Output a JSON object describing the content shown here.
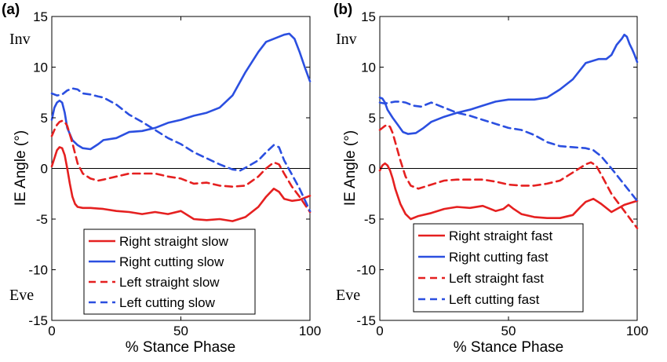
{
  "chart_data": [
    {
      "type": "line",
      "panel_label": "(a)",
      "xlabel": "% Stance Phase",
      "ylabel": "IE Angle (°)",
      "xlim": [
        0,
        100
      ],
      "ylim": [
        -15,
        15
      ],
      "xticks": [
        0,
        50,
        100
      ],
      "yticks": [
        -15,
        -10,
        -5,
        0,
        5,
        10,
        15
      ],
      "annotations": [
        "Inv",
        "Eve"
      ],
      "legend_position": "bottom-center",
      "series": [
        {
          "name": "Right straight slow",
          "color": "#e52020",
          "dash": "solid",
          "x": [
            0,
            1,
            2,
            3,
            4,
            5,
            6,
            7,
            8,
            9,
            10,
            12,
            15,
            20,
            25,
            30,
            35,
            40,
            45,
            50,
            55,
            60,
            65,
            70,
            75,
            80,
            83,
            86,
            88,
            90,
            93,
            96,
            100
          ],
          "y": [
            0.2,
            1.0,
            1.8,
            2.1,
            2.0,
            1.3,
            0.0,
            -1.5,
            -2.8,
            -3.5,
            -3.8,
            -3.9,
            -3.9,
            -4.0,
            -4.2,
            -4.3,
            -4.5,
            -4.3,
            -4.5,
            -4.2,
            -5.0,
            -5.1,
            -5.0,
            -5.2,
            -4.8,
            -3.8,
            -2.8,
            -2.0,
            -2.3,
            -3.0,
            -3.2,
            -3.1,
            -2.7
          ]
        },
        {
          "name": "Right cutting slow",
          "color": "#2b4fe0",
          "dash": "solid",
          "x": [
            0,
            1,
            2,
            3,
            4,
            5,
            6,
            8,
            10,
            12,
            15,
            18,
            20,
            25,
            30,
            35,
            40,
            45,
            50,
            55,
            60,
            65,
            70,
            75,
            80,
            83,
            86,
            88,
            90,
            92,
            94,
            96,
            98,
            100
          ],
          "y": [
            4.8,
            6.0,
            6.5,
            6.7,
            6.5,
            5.5,
            4.0,
            2.8,
            2.3,
            2.0,
            1.9,
            2.4,
            2.8,
            3.0,
            3.6,
            3.7,
            4.0,
            4.5,
            4.8,
            5.2,
            5.5,
            6.0,
            7.2,
            9.5,
            11.5,
            12.5,
            12.8,
            13.0,
            13.2,
            13.3,
            12.8,
            11.5,
            10.0,
            8.6
          ]
        },
        {
          "name": "Left straight slow",
          "color": "#e52020",
          "dash": "dashed",
          "x": [
            0,
            1,
            2,
            3,
            4,
            5,
            6,
            8,
            10,
            12,
            15,
            18,
            20,
            25,
            30,
            35,
            40,
            45,
            50,
            55,
            60,
            65,
            70,
            75,
            80,
            83,
            86,
            88,
            90,
            93,
            96,
            100
          ],
          "y": [
            3.2,
            3.8,
            4.3,
            4.6,
            4.7,
            4.6,
            4.2,
            2.5,
            0.5,
            -0.5,
            -1.0,
            -1.2,
            -1.1,
            -0.8,
            -0.5,
            -0.5,
            -0.5,
            -0.8,
            -1.0,
            -1.5,
            -1.4,
            -1.7,
            -1.8,
            -1.7,
            -0.8,
            0.0,
            0.6,
            0.4,
            -0.5,
            -1.8,
            -2.8,
            -4.3
          ]
        },
        {
          "name": "Left cutting slow",
          "color": "#2b4fe0",
          "dash": "dashed",
          "x": [
            0,
            2,
            4,
            6,
            8,
            10,
            12,
            15,
            18,
            20,
            25,
            30,
            35,
            40,
            45,
            50,
            55,
            60,
            65,
            70,
            73,
            76,
            80,
            83,
            86,
            88,
            90,
            93,
            96,
            100
          ],
          "y": [
            7.4,
            7.2,
            7.3,
            7.7,
            7.9,
            7.8,
            7.4,
            7.3,
            7.1,
            7.0,
            6.3,
            5.3,
            4.6,
            3.8,
            3.0,
            2.4,
            1.6,
            1.0,
            0.4,
            -0.1,
            -0.2,
            0.2,
            0.8,
            1.6,
            2.3,
            2.1,
            0.8,
            -0.6,
            -2.0,
            -4.2
          ]
        }
      ]
    },
    {
      "type": "line",
      "panel_label": "(b)",
      "xlabel": "% Stance Phase",
      "ylabel": "IE Angle (°)",
      "xlim": [
        0,
        100
      ],
      "ylim": [
        -15,
        15
      ],
      "xticks": [
        0,
        50,
        100
      ],
      "yticks": [
        -15,
        -10,
        -5,
        0,
        5,
        10,
        15
      ],
      "annotations": [
        "Inv",
        "Eve"
      ],
      "legend_position": "bottom-center",
      "series": [
        {
          "name": "Right straight fast",
          "color": "#e52020",
          "dash": "solid",
          "x": [
            0,
            1,
            2,
            3,
            4,
            5,
            6,
            8,
            10,
            12,
            15,
            20,
            25,
            30,
            35,
            40,
            45,
            48,
            50,
            52,
            55,
            60,
            65,
            70,
            75,
            78,
            80,
            83,
            86,
            90,
            95,
            100
          ],
          "y": [
            -0.2,
            0.3,
            0.5,
            0.3,
            -0.2,
            -1.0,
            -2.0,
            -3.5,
            -4.5,
            -5.0,
            -4.7,
            -4.4,
            -4.0,
            -3.8,
            -3.9,
            -3.7,
            -4.2,
            -4.0,
            -3.6,
            -4.0,
            -4.5,
            -4.8,
            -4.9,
            -4.9,
            -4.6,
            -3.8,
            -3.3,
            -3.0,
            -3.5,
            -4.3,
            -3.6,
            -3.2
          ]
        },
        {
          "name": "Right cutting fast",
          "color": "#2b4fe0",
          "dash": "solid",
          "x": [
            0,
            1,
            2,
            3,
            5,
            7,
            9,
            11,
            14,
            17,
            20,
            25,
            30,
            35,
            40,
            45,
            50,
            55,
            60,
            65,
            70,
            75,
            80,
            85,
            88,
            90,
            92,
            94,
            95,
            96,
            97,
            98,
            99,
            100
          ],
          "y": [
            7.0,
            6.9,
            6.5,
            5.8,
            5.0,
            4.3,
            3.6,
            3.4,
            3.5,
            4.0,
            4.6,
            5.1,
            5.5,
            5.8,
            6.2,
            6.6,
            6.8,
            6.8,
            6.8,
            7.0,
            7.8,
            8.8,
            10.4,
            10.8,
            10.8,
            11.2,
            12.2,
            12.8,
            13.2,
            13.0,
            12.3,
            11.8,
            11.2,
            10.5
          ]
        },
        {
          "name": "Left straight fast",
          "color": "#e52020",
          "dash": "dashed",
          "x": [
            0,
            1,
            2,
            3,
            4,
            5,
            6,
            8,
            10,
            12,
            15,
            20,
            25,
            30,
            35,
            40,
            45,
            50,
            55,
            60,
            65,
            70,
            75,
            80,
            82,
            84,
            86,
            90,
            95,
            100
          ],
          "y": [
            3.8,
            4.0,
            4.2,
            4.3,
            4.1,
            3.5,
            2.6,
            0.8,
            -0.8,
            -1.7,
            -2.0,
            -1.6,
            -1.2,
            -1.1,
            -1.1,
            -1.1,
            -1.3,
            -1.6,
            -1.7,
            -1.7,
            -1.5,
            -1.2,
            -0.4,
            0.4,
            0.6,
            0.3,
            -0.6,
            -2.5,
            -4.2,
            -5.9
          ]
        },
        {
          "name": "Left cutting fast",
          "color": "#2b4fe0",
          "dash": "dashed",
          "x": [
            0,
            2,
            4,
            6,
            8,
            10,
            13,
            16,
            20,
            25,
            30,
            35,
            40,
            45,
            50,
            55,
            60,
            65,
            70,
            75,
            80,
            83,
            86,
            90,
            95,
            100
          ],
          "y": [
            6.5,
            6.4,
            6.5,
            6.6,
            6.6,
            6.5,
            6.2,
            6.1,
            6.5,
            6.0,
            5.5,
            5.2,
            4.8,
            4.4,
            4.0,
            3.8,
            3.3,
            2.6,
            2.2,
            2.1,
            2.0,
            1.8,
            1.2,
            0.0,
            -1.6,
            -3.2
          ]
        }
      ]
    }
  ]
}
